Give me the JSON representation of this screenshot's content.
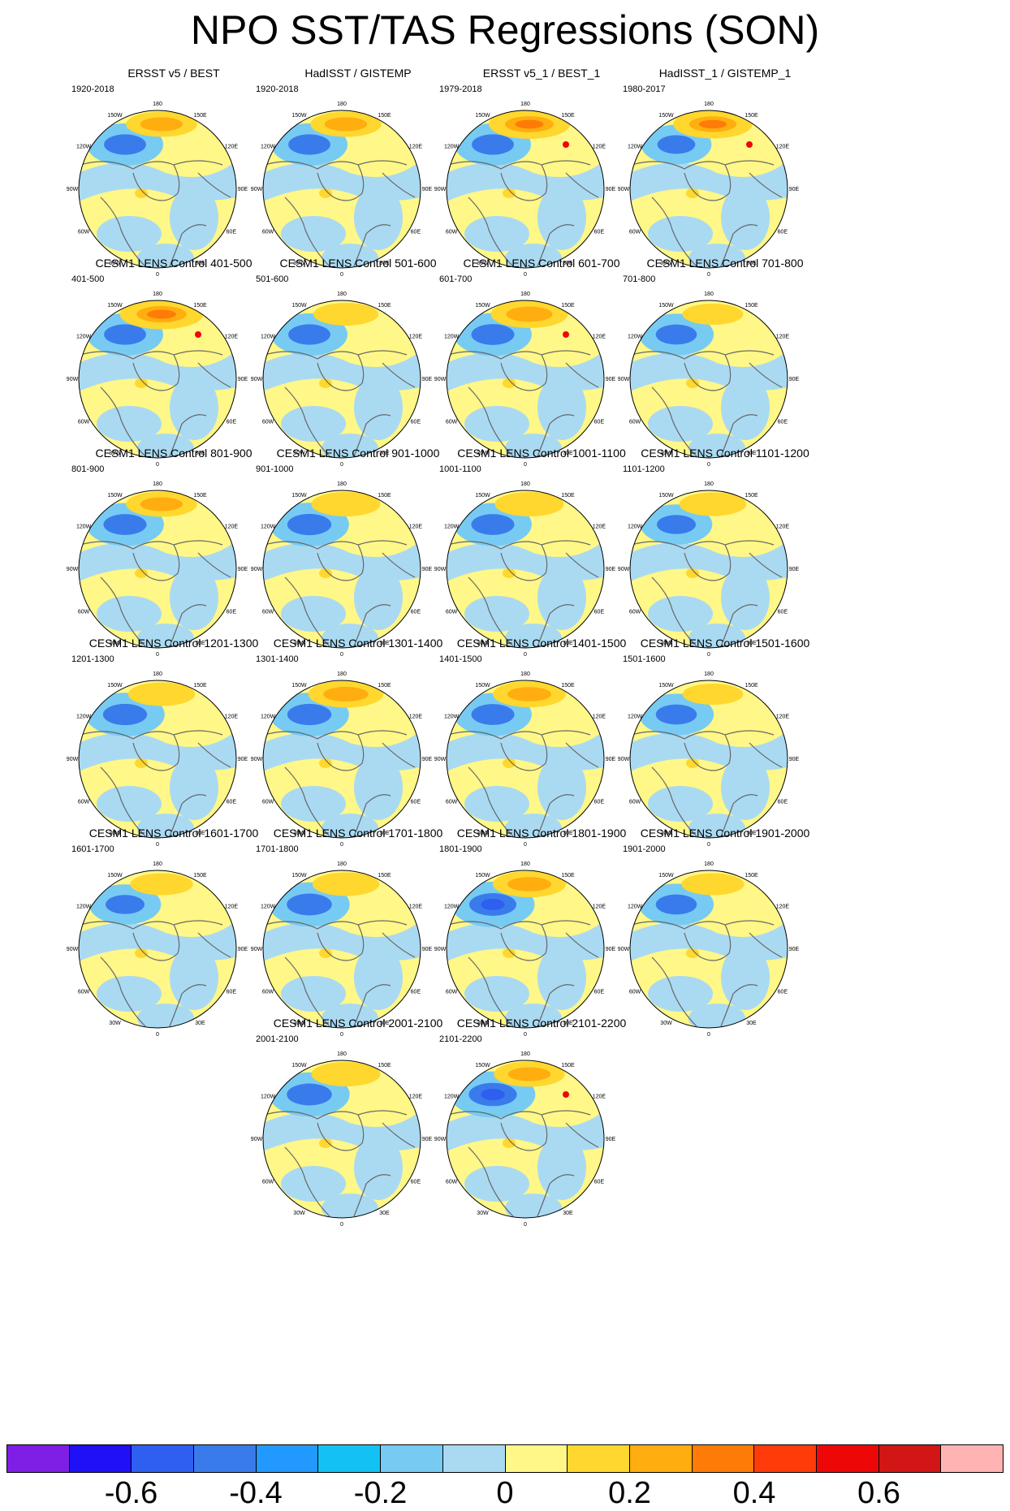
{
  "title": "NPO SST/TAS Regressions (SON)",
  "lon_labels": [
    "180",
    "150E",
    "120E",
    "90E",
    "60E",
    "30E",
    "0",
    "30W",
    "60W",
    "90W",
    "120W",
    "150W"
  ],
  "colorbar": {
    "colors": [
      "#7f1fe6",
      "#1f10f5",
      "#2e5ff0",
      "#3a7bec",
      "#2299ff",
      "#14c1f5",
      "#77cbf3",
      "#aadaf2",
      "#fff787",
      "#ffd72e",
      "#ffad0f",
      "#ff7b07",
      "#ff3b0a",
      "#ee0707",
      "#d21515",
      "#ffb3b3"
    ],
    "labels": [
      "-0.6",
      "-0.4",
      "-0.2",
      "0",
      "0.2",
      "0.4",
      "0.6"
    ]
  },
  "panels": [
    {
      "title": "ERSST v5 / BEST",
      "period": "1920-2018",
      "pattern": {
        "warm": 0.55,
        "cold": 0.5,
        "red": 0
      }
    },
    {
      "title": "HadISST / GISTEMP",
      "period": "1920-2018",
      "pattern": {
        "warm": 0.55,
        "cold": 0.5,
        "red": 0
      }
    },
    {
      "title": "ERSST v5_1 / BEST_1",
      "period": "1979-2018",
      "pattern": {
        "warm": 0.8,
        "cold": 0.5,
        "red": 1
      }
    },
    {
      "title": "HadISST_1 / GISTEMP_1",
      "period": "1980-2017",
      "pattern": {
        "warm": 0.75,
        "cold": 0.3,
        "red": 1
      }
    },
    {
      "title": "CESM1 LENS Control 401-500",
      "period": "401-500",
      "pattern": {
        "warm": 0.85,
        "cold": 0.5,
        "red": 1
      }
    },
    {
      "title": "CESM1 LENS Control 501-600",
      "period": "501-600",
      "pattern": {
        "warm": 0.4,
        "cold": 0.5,
        "red": 0
      }
    },
    {
      "title": "CESM1 LENS Control 601-700",
      "period": "601-700",
      "pattern": {
        "warm": 0.7,
        "cold": 0.55,
        "red": 1
      }
    },
    {
      "title": "CESM1 LENS Control 701-800",
      "period": "701-800",
      "pattern": {
        "warm": 0.3,
        "cold": 0.45,
        "red": 0
      }
    },
    {
      "title": "CESM1 LENS Control 801-900",
      "period": "801-900",
      "pattern": {
        "warm": 0.55,
        "cold": 0.55,
        "red": 0
      }
    },
    {
      "title": "CESM1 LENS Control 901-1000",
      "period": "901-1000",
      "pattern": {
        "warm": 0.5,
        "cold": 0.6,
        "red": 0
      }
    },
    {
      "title": "CESM1 LENS Control 1001-1100",
      "period": "1001-1100",
      "pattern": {
        "warm": 0.5,
        "cold": 0.55,
        "red": 0
      }
    },
    {
      "title": "CESM1 LENS Control 1101-1200",
      "period": "1101-1200",
      "pattern": {
        "warm": 0.45,
        "cold": 0.35,
        "red": 0
      }
    },
    {
      "title": "CESM1 LENS Control 1201-1300",
      "period": "1201-1300",
      "pattern": {
        "warm": 0.45,
        "cold": 0.6,
        "red": 0
      }
    },
    {
      "title": "CESM1 LENS Control 1301-1400",
      "period": "1301-1400",
      "pattern": {
        "warm": 0.65,
        "cold": 0.6,
        "red": 0
      }
    },
    {
      "title": "CESM1 LENS Control 1401-1500",
      "period": "1401-1500",
      "pattern": {
        "warm": 0.6,
        "cold": 0.55,
        "red": 0
      }
    },
    {
      "title": "CESM1 LENS Control 1501-1600",
      "period": "1501-1600",
      "pattern": {
        "warm": 0.3,
        "cold": 0.45,
        "red": 0
      }
    },
    {
      "title": "CESM1 LENS Control 1601-1700",
      "period": "1601-1700",
      "pattern": {
        "warm": 0.35,
        "cold": 0.35,
        "red": 0
      }
    },
    {
      "title": "CESM1 LENS Control 1701-1800",
      "period": "1701-1800",
      "pattern": {
        "warm": 0.45,
        "cold": 0.65,
        "red": 0
      }
    },
    {
      "title": "CESM1 LENS Control 1801-1900",
      "period": "1801-1900",
      "pattern": {
        "warm": 0.6,
        "cold": 0.75,
        "red": 0
      }
    },
    {
      "title": "CESM1 LENS Control 1901-2000",
      "period": "1901-2000",
      "pattern": {
        "warm": 0.35,
        "cold": 0.45,
        "red": 0
      }
    },
    {
      "title": "CESM1 LENS Control 2001-2100",
      "period": "2001-2100",
      "pattern": {
        "warm": 0.5,
        "cold": 0.65,
        "red": 0
      }
    },
    {
      "title": "CESM1 LENS Control 2101-2200",
      "period": "2101-2200",
      "pattern": {
        "warm": 0.55,
        "cold": 0.8,
        "red": 1
      }
    }
  ]
}
